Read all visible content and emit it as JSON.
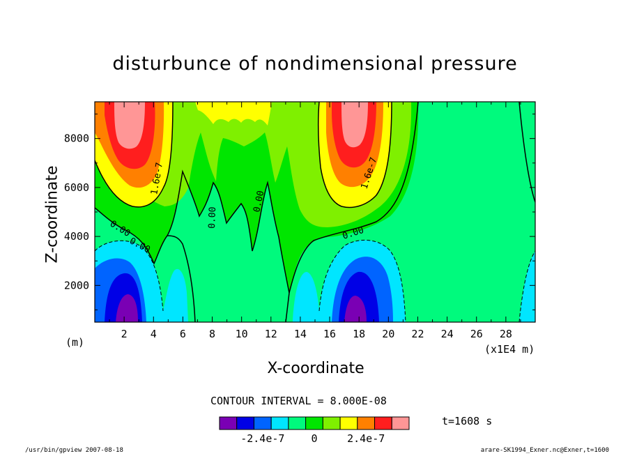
{
  "chart_data": {
    "type": "contour",
    "title": "disturbunce of nondimensional pressure",
    "xlabel": "X-coordinate",
    "ylabel": "Z-coordinate",
    "x_unit_note": "(x1E4 m)",
    "y_unit_note": "(m)",
    "xlim": [
      0,
      30
    ],
    "ylim": [
      500,
      9500
    ],
    "x_ticks": [
      2,
      4,
      6,
      8,
      10,
      12,
      14,
      16,
      18,
      20,
      22,
      24,
      26,
      28
    ],
    "y_ticks": [
      2000,
      4000,
      6000,
      8000
    ],
    "contour_interval": "CONTOUR INTERVAL = 8.000E-08",
    "levels": [
      -4e-07,
      -3.2e-07,
      -2.4e-07,
      -1.6e-07,
      -8e-08,
      0,
      8e-08,
      1.6e-07,
      2.4e-07,
      3.2e-07,
      4e-07
    ],
    "colorbar_colors": [
      "#7a00b4",
      "#0000e6",
      "#0064ff",
      "#00e6ff",
      "#00fa7d",
      "#00e600",
      "#7ff000",
      "#ffff00",
      "#ff8000",
      "#ff1e1e",
      "#ff9696"
    ],
    "colorbar_labels": [
      "-2.4e-7",
      "0",
      "2.4e-7"
    ],
    "contour_labels": [
      "0.00",
      "0.00",
      "0.00",
      "0.00",
      "0.00",
      "1.6e-7",
      "1.6e-7"
    ],
    "time_label": "t=1608 s"
  },
  "footer": {
    "left": "/usr/bin/gpview   2007-08-18",
    "right": "arare-SK1994_Exner.nc@Exner,t=1600"
  }
}
